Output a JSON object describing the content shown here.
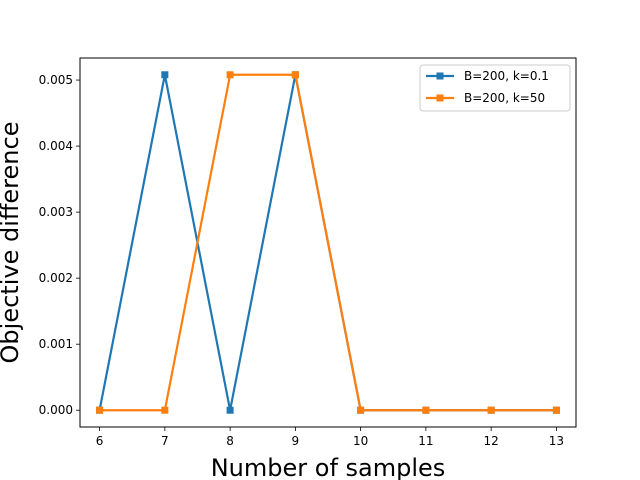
{
  "chart_data": {
    "type": "line",
    "title": "",
    "xlabel": "Number of samples",
    "ylabel": "Objective difference",
    "x": [
      6,
      7,
      8,
      9,
      10,
      11,
      12,
      13
    ],
    "xlim": [
      5.7,
      13.3
    ],
    "ylim": [
      -0.000254,
      0.005334
    ],
    "xticks": [
      "6",
      "7",
      "8",
      "9",
      "10",
      "11",
      "12",
      "13"
    ],
    "yticks": [
      {
        "value": 0.0,
        "label": "0.000"
      },
      {
        "value": 0.001,
        "label": "0.001"
      },
      {
        "value": 0.002,
        "label": "0.002"
      },
      {
        "value": 0.003,
        "label": "0.003"
      },
      {
        "value": 0.004,
        "label": "0.004"
      },
      {
        "value": 0.005,
        "label": "0.005"
      }
    ],
    "grid": false,
    "legend_position": "top-right",
    "series": [
      {
        "name": "B=200, k=0.1",
        "color": "#1f77b4",
        "marker": "square",
        "values": [
          0.0,
          0.00508,
          0.0,
          0.00508,
          0.0,
          0.0,
          0.0,
          0.0
        ]
      },
      {
        "name": "B=200, k=50",
        "color": "#ff7f0e",
        "marker": "square",
        "values": [
          0.0,
          0.0,
          0.00508,
          0.00508,
          0.0,
          0.0,
          0.0,
          0.0
        ]
      }
    ]
  }
}
